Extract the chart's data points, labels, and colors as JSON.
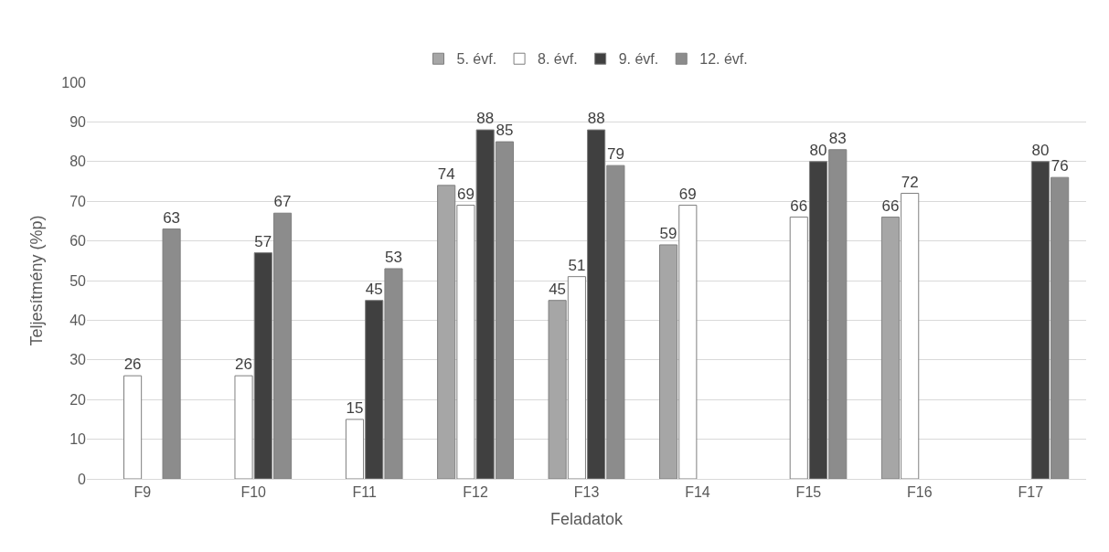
{
  "chart_data": {
    "type": "bar",
    "xlabel": "Feladatok",
    "ylabel": "Teljesítmény (%p)",
    "categories": [
      "F9",
      "F10",
      "F11",
      "F12",
      "F13",
      "F14",
      "F15",
      "F16",
      "F17"
    ],
    "series": [
      {
        "name": "5. évf.",
        "color": "#a6a6a6",
        "values": [
          null,
          null,
          null,
          74,
          45,
          59,
          null,
          66,
          null
        ]
      },
      {
        "name": "8. évf.",
        "color": "#ffffff",
        "values": [
          26,
          26,
          15,
          69,
          51,
          69,
          66,
          72,
          null
        ]
      },
      {
        "name": "9. évf.",
        "color": "#404040",
        "values": [
          null,
          57,
          45,
          88,
          88,
          null,
          80,
          null,
          80
        ]
      },
      {
        "name": "12. évf.",
        "color": "#8c8c8c",
        "values": [
          63,
          67,
          53,
          85,
          79,
          null,
          83,
          null,
          76
        ]
      }
    ],
    "ylim": [
      0,
      100
    ],
    "yticks": [
      0,
      10,
      20,
      30,
      40,
      50,
      60,
      70,
      80,
      90,
      100
    ],
    "grid": "y",
    "legend": "top",
    "data_labels": true
  }
}
